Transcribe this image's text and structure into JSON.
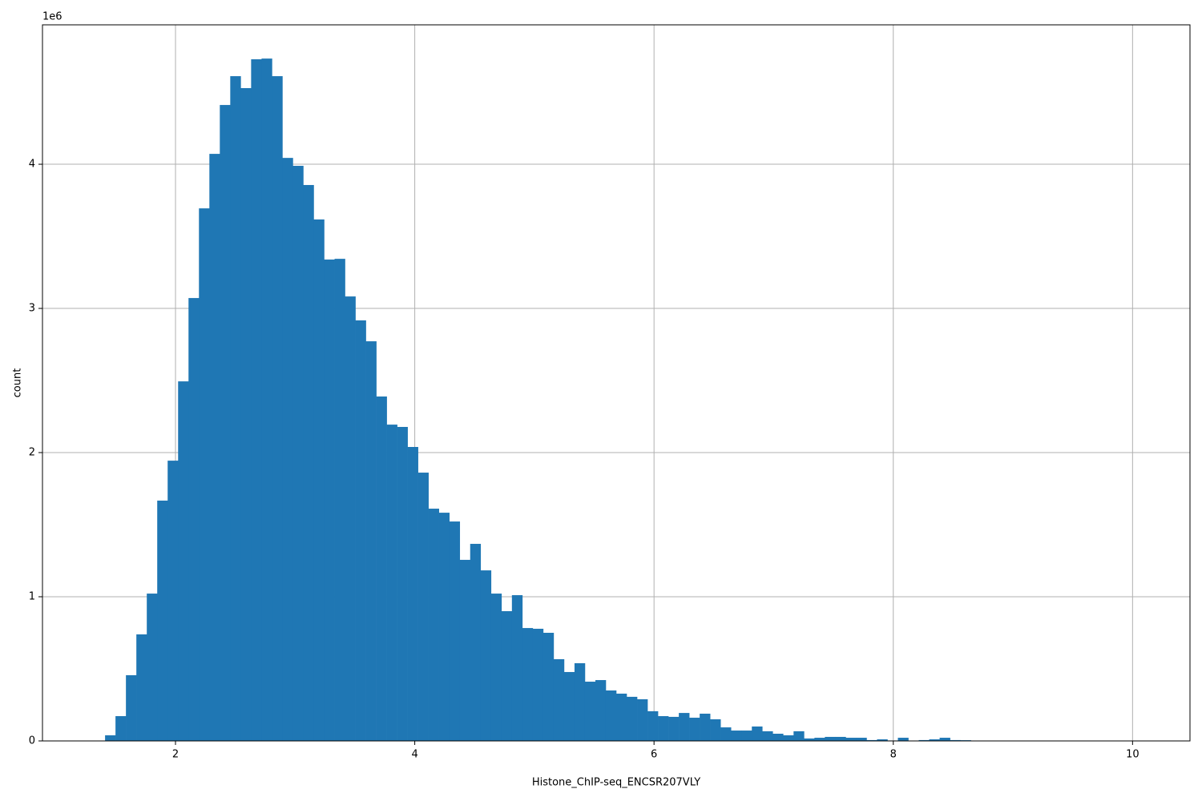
{
  "chart_data": {
    "type": "histogram",
    "x_label": "Histone_ChIP-seq_ENCSR207VLY",
    "y_label": "count",
    "y_offset_label": "1e6",
    "color": "#1f77b4",
    "grid": true,
    "bins": [
      1.324,
      1.4112,
      1.4984,
      1.5856,
      1.6728,
      1.76,
      1.8472,
      1.9344,
      2.0216,
      2.1088,
      2.196,
      2.2832,
      2.3704,
      2.4576,
      2.5448,
      2.632,
      2.7192,
      2.8064,
      2.8936,
      2.9808,
      3.068,
      3.1552,
      3.2424,
      3.3296,
      3.4168,
      3.504,
      3.5912,
      3.6784,
      3.7656,
      3.8528,
      3.94,
      4.0272,
      4.1144,
      4.2016,
      4.2888,
      4.376,
      4.4632,
      4.5504,
      4.6376,
      4.7248,
      4.812,
      4.8992,
      4.9864,
      5.0736,
      5.1608,
      5.248,
      5.3352,
      5.4224,
      5.5096,
      5.5968,
      5.684,
      5.7712,
      5.8584,
      5.9456,
      6.0328,
      6.12,
      6.2072,
      6.2944,
      6.3816,
      6.4688,
      6.556,
      6.6432,
      6.7304,
      6.8176,
      6.9048,
      6.992,
      7.0792,
      7.1664,
      7.2536,
      7.3408,
      7.428,
      7.5152,
      7.6024,
      7.6896,
      7.7768,
      7.864,
      7.9512,
      8.0384,
      8.1256,
      8.2128,
      8.3,
      8.3872,
      8.4744,
      8.5616,
      8.6488,
      8.736,
      8.8232,
      8.9104,
      8.9976,
      9.0848,
      9.172,
      9.2592,
      9.3464,
      9.4336,
      9.5208,
      9.608,
      9.6952,
      9.7824,
      9.8696,
      9.9568,
      10.044
    ],
    "values": [
      2000,
      39000,
      172000,
      456000,
      739000,
      1022000,
      1667000,
      1944000,
      2494000,
      3072000,
      3694000,
      4072000,
      4411000,
      4611000,
      4528000,
      4728000,
      4733000,
      4611000,
      4044000,
      3989000,
      3856000,
      3617000,
      3339000,
      3344000,
      3083000,
      2917000,
      2772000,
      2389000,
      2194000,
      2178000,
      2039000,
      1861000,
      1611000,
      1583000,
      1522000,
      1256000,
      1367000,
      1183000,
      1022000,
      900000,
      1011000,
      783000,
      778000,
      750000,
      567000,
      478000,
      539000,
      411000,
      422000,
      350000,
      328000,
      306000,
      289000,
      206000,
      172000,
      167000,
      194000,
      161000,
      189000,
      150000,
      94000,
      72000,
      72000,
      100000,
      67000,
      50000,
      39000,
      67000,
      17000,
      22000,
      28000,
      28000,
      22000,
      22000,
      6000,
      11000,
      3000,
      22000,
      2000,
      6000,
      11000,
      22000,
      6000,
      5000,
      2000,
      1000,
      1000,
      500,
      500,
      300,
      200,
      100,
      100,
      100,
      50,
      50,
      20,
      20,
      10,
      10
    ],
    "xlim": [
      0.888,
      10.48
    ],
    "ylim": [
      0,
      4967000
    ],
    "xticks": [
      2,
      4,
      6,
      8,
      10
    ],
    "yticks": [
      0,
      {
        "value": 1000000,
        "label": "1"
      },
      {
        "value": 2000000,
        "label": "2"
      },
      {
        "value": 3000000,
        "label": "3"
      },
      {
        "value": 4000000,
        "label": "4"
      }
    ]
  }
}
